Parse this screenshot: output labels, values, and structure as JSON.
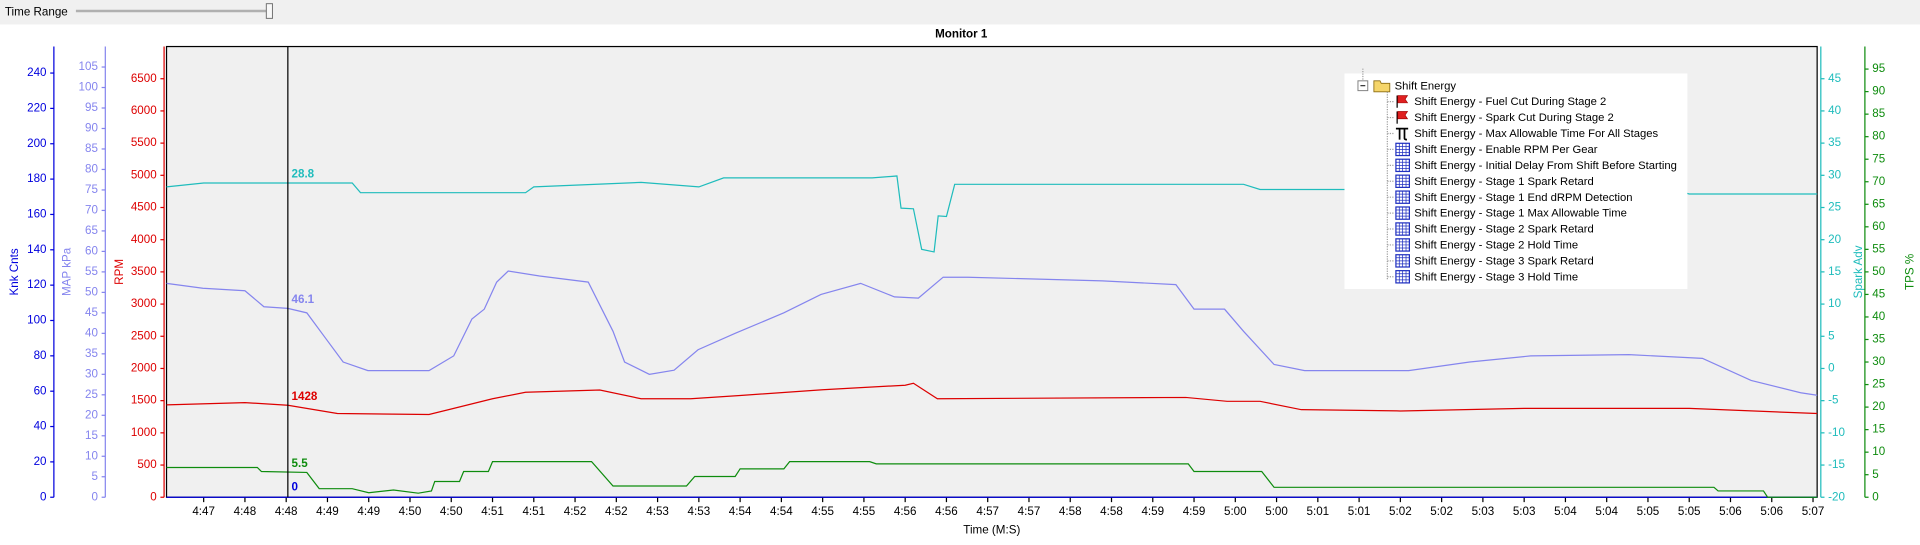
{
  "time_range_label": "Time Range",
  "chart_data": {
    "type": "line",
    "title": "Monitor 1",
    "xlabel": "Time (M:S)",
    "xlim": [
      286.55,
      306.55
    ],
    "xticks": [
      {
        "value": 287,
        "label": "4:47"
      },
      {
        "value": 287.5,
        "label": "4:48"
      },
      {
        "value": 288,
        "label": "4:48"
      },
      {
        "value": 288.5,
        "label": "4:49"
      },
      {
        "value": 289,
        "label": "4:49"
      },
      {
        "value": 289.5,
        "label": "4:50"
      },
      {
        "value": 290,
        "label": "4:50"
      },
      {
        "value": 290.5,
        "label": "4:51"
      },
      {
        "value": 291,
        "label": "4:51"
      },
      {
        "value": 291.5,
        "label": "4:52"
      },
      {
        "value": 292,
        "label": "4:52"
      },
      {
        "value": 292.5,
        "label": "4:53"
      },
      {
        "value": 293,
        "label": "4:53"
      },
      {
        "value": 293.5,
        "label": "4:54"
      },
      {
        "value": 294,
        "label": "4:54"
      },
      {
        "value": 294.5,
        "label": "4:55"
      },
      {
        "value": 295,
        "label": "4:55"
      },
      {
        "value": 295.5,
        "label": "4:56"
      },
      {
        "value": 296,
        "label": "4:56"
      },
      {
        "value": 296.5,
        "label": "4:57"
      },
      {
        "value": 297,
        "label": "4:57"
      },
      {
        "value": 297.5,
        "label": "4:58"
      },
      {
        "value": 298,
        "label": "4:58"
      },
      {
        "value": 298.5,
        "label": "4:59"
      },
      {
        "value": 299,
        "label": "4:59"
      },
      {
        "value": 299.5,
        "label": "5:00"
      },
      {
        "value": 300,
        "label": "5:00"
      },
      {
        "value": 300.5,
        "label": "5:01"
      },
      {
        "value": 301,
        "label": "5:01"
      },
      {
        "value": 301.5,
        "label": "5:02"
      },
      {
        "value": 302,
        "label": "5:02"
      },
      {
        "value": 302.5,
        "label": "5:03"
      },
      {
        "value": 303,
        "label": "5:03"
      },
      {
        "value": 303.5,
        "label": "5:04"
      },
      {
        "value": 304,
        "label": "5:04"
      },
      {
        "value": 304.5,
        "label": "5:05"
      },
      {
        "value": 305,
        "label": "5:05"
      },
      {
        "value": 305.5,
        "label": "5:06"
      },
      {
        "value": 306,
        "label": "5:06"
      },
      {
        "value": 306.5,
        "label": "5:07"
      }
    ],
    "cursor": 288.02,
    "axes": [
      {
        "title": "Knk Cnts",
        "color": "#0000dd",
        "side": "left",
        "ylim": [
          0,
          255
        ],
        "yticks": [
          0,
          20,
          40,
          60,
          80,
          100,
          120,
          140,
          160,
          180,
          200,
          220,
          240
        ]
      },
      {
        "title": "MAP kPa",
        "color": "#8585ee",
        "side": "left",
        "ylim": [
          0,
          110
        ],
        "yticks": [
          0,
          5,
          10,
          15,
          20,
          25,
          30,
          35,
          40,
          45,
          50,
          55,
          60,
          65,
          70,
          75,
          80,
          85,
          90,
          95,
          100,
          105
        ]
      },
      {
        "title": "RPM",
        "color": "#dd0000",
        "side": "left",
        "ylim": [
          0,
          7000
        ],
        "yticks": [
          0,
          500,
          1000,
          1500,
          2000,
          2500,
          3000,
          3500,
          4000,
          4500,
          5000,
          5500,
          6000,
          6500
        ]
      },
      {
        "title": "Spark Adv",
        "color": "#1fbcbc",
        "side": "right",
        "ylim": [
          -20,
          50
        ],
        "yticks": [
          -20,
          -15,
          -10,
          -5,
          0,
          5,
          10,
          15,
          20,
          25,
          30,
          35,
          40,
          45
        ]
      },
      {
        "title": "TPS %",
        "color": "#0e8c0e",
        "side": "right",
        "ylim": [
          0,
          100
        ],
        "yticks": [
          0,
          5,
          10,
          15,
          20,
          25,
          30,
          35,
          40,
          45,
          50,
          55,
          60,
          65,
          70,
          75,
          80,
          85,
          90,
          95
        ]
      }
    ],
    "series": [
      {
        "axis": 0,
        "color": "#0000dd",
        "cursor_value": 0,
        "x": [
          286.55,
          306.55
        ],
        "values": [
          0,
          0
        ]
      },
      {
        "axis": 1,
        "color": "#8585ee",
        "cursor_value": 46.1,
        "x": [
          286.55,
          286.99,
          287.5,
          287.73,
          288.02,
          288.25,
          288.47,
          288.69,
          288.99,
          289.73,
          290.03,
          290.25,
          290.4,
          290.55,
          290.69,
          291.07,
          291.66,
          291.96,
          292.1,
          292.4,
          292.7,
          292.99,
          293.44,
          294.03,
          294.48,
          294.96,
          295.37,
          295.66,
          295.96,
          296.26,
          297.89,
          298.78,
          299.0,
          299.37,
          299.6,
          299.97,
          300.34,
          301.6,
          302.34,
          303.08,
          304.27,
          305.16,
          305.75,
          306.35,
          306.55
        ],
        "values": [
          52.2,
          51,
          50.4,
          46.5,
          46.1,
          45,
          39,
          33,
          30.9,
          30.9,
          34.5,
          43.5,
          45.9,
          52.5,
          55.2,
          54,
          52.5,
          40.5,
          33,
          30,
          31,
          36,
          40,
          45,
          49.5,
          52.2,
          48.9,
          48.6,
          53.7,
          53.7,
          52.8,
          51.9,
          45.9,
          45.9,
          40.5,
          32.4,
          30.9,
          30.9,
          33,
          34.5,
          34.8,
          33.9,
          28.5,
          25.5,
          24.9
        ]
      },
      {
        "axis": 2,
        "color": "#dd0000",
        "cursor_value": 1428,
        "x": [
          286.55,
          287.5,
          288.02,
          288.62,
          289.73,
          290.0,
          290.5,
          290.9,
          291.8,
          292.3,
          292.9,
          293.5,
          294.5,
          295.5,
          295.6,
          295.89,
          298.9,
          299.4,
          299.8,
          300.3,
          301.5,
          303.0,
          305.0,
          306.55
        ],
        "values": [
          1435,
          1470,
          1428,
          1300,
          1285,
          1370,
          1530,
          1630,
          1665,
          1530,
          1530,
          1580,
          1670,
          1740,
          1770,
          1530,
          1550,
          1490,
          1490,
          1360,
          1340,
          1380,
          1380,
          1300
        ]
      },
      {
        "axis": 3,
        "color": "#1fbcbc",
        "cursor_value": 28.8,
        "x": [
          286.55,
          287.0,
          288.8,
          288.9,
          290.9,
          291.0,
          292.3,
          293.0,
          293.3,
          295.1,
          295.4,
          295.45,
          295.6,
          295.7,
          295.85,
          295.9,
          296.0,
          296.1,
          299.6,
          299.8,
          304.8,
          305.0,
          306.55
        ],
        "values": [
          28.2,
          28.8,
          28.8,
          27.3,
          27.3,
          28.2,
          28.9,
          28.2,
          29.6,
          29.6,
          29.9,
          24.9,
          24.8,
          18.5,
          18.1,
          23.7,
          23.6,
          28.6,
          28.6,
          27.8,
          27.8,
          27.1,
          27.1
        ]
      },
      {
        "axis": 4,
        "color": "#0e8c0e",
        "cursor_value": 5.5,
        "x": [
          286.55,
          287.65,
          287.7,
          288.25,
          288.4,
          288.8,
          289.0,
          289.3,
          289.6,
          289.76,
          289.8,
          290.1,
          290.15,
          290.45,
          290.5,
          291.7,
          291.96,
          292.85,
          292.95,
          293.44,
          293.5,
          294.03,
          294.1,
          295.07,
          295.15,
          298.93,
          299.0,
          299.82,
          299.97,
          305.3,
          305.35,
          305.9,
          305.95,
          306.55
        ],
        "values": [
          6.6,
          6.6,
          5.7,
          5.5,
          1.9,
          1.9,
          1.0,
          1.6,
          0.9,
          1.4,
          3.5,
          3.5,
          5.7,
          5.7,
          7.9,
          7.9,
          2.5,
          2.5,
          4.6,
          4.6,
          6.3,
          6.3,
          7.9,
          7.9,
          7.4,
          7.4,
          5.7,
          5.7,
          2.2,
          2.2,
          1.4,
          1.4,
          0,
          0
        ]
      }
    ]
  },
  "tree": {
    "root": "Shift Energy",
    "items": [
      {
        "icon": "flag",
        "label": "Shift Energy - Fuel Cut During Stage 2"
      },
      {
        "icon": "flag",
        "label": "Shift Energy - Spark Cut During Stage 2"
      },
      {
        "icon": "pi",
        "label": "Shift Energy - Max Allowable Time For All Stages"
      },
      {
        "icon": "grid",
        "label": "Shift Energy - Enable RPM Per Gear"
      },
      {
        "icon": "grid",
        "label": "Shift Energy - Initial Delay From Shift Before Starting"
      },
      {
        "icon": "grid",
        "label": "Shift Energy - Stage 1 Spark Retard"
      },
      {
        "icon": "grid",
        "label": "Shift Energy - Stage 1 End dRPM Detection"
      },
      {
        "icon": "grid",
        "label": "Shift Energy - Stage 1 Max Allowable Time"
      },
      {
        "icon": "grid",
        "label": "Shift Energy - Stage 2 Spark Retard"
      },
      {
        "icon": "grid",
        "label": "Shift Energy - Stage 2 Hold Time"
      },
      {
        "icon": "grid",
        "label": "Shift Energy - Stage 3 Spark Retard"
      },
      {
        "icon": "grid",
        "label": "Shift Energy - Stage 3 Hold Time"
      }
    ]
  }
}
